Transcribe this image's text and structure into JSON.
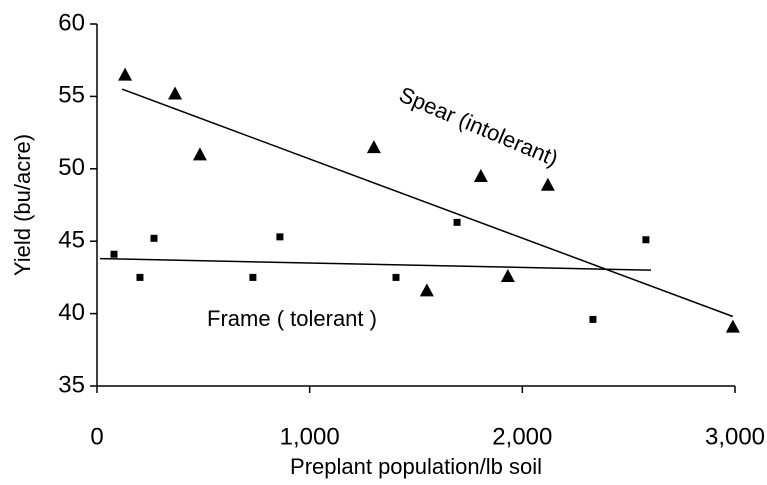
{
  "chart_data": {
    "type": "scatter",
    "x_label": "Preplant population/lb soil",
    "y_label": "Yield (bu/acre)",
    "xlim": [
      0,
      3000
    ],
    "xticks": [
      0,
      {
        "value": 1000,
        "label": "1,000"
      },
      {
        "value": 2000,
        "label": "2,000"
      },
      {
        "value": 3000,
        "label": "3,000"
      }
    ],
    "ylim": [
      35,
      60
    ],
    "yticks": [
      35,
      40,
      45,
      50,
      55,
      60
    ],
    "grid": false,
    "series": [
      {
        "name": "Spear (intolerant)",
        "marker": "triangle",
        "color": "#000000",
        "x": [
          132,
          367,
          484,
          1302,
          1551,
          1805,
          1932,
          2120,
          2990
        ],
        "values": [
          56.5,
          55.2,
          51.0,
          51.5,
          41.6,
          49.5,
          42.6,
          48.9,
          39.1
        ],
        "trend": {
          "x": [
            118,
            2990
          ],
          "values": [
            55.5,
            39.8
          ]
        }
      },
      {
        "name": "Frame ( tolerant )",
        "marker": "square",
        "color": "#000000",
        "x": [
          80,
          202,
          268,
          733,
          860,
          1406,
          1693,
          2332,
          2581
        ],
        "values": [
          44.1,
          42.5,
          45.2,
          42.5,
          45.3,
          42.5,
          46.3,
          39.6,
          45.1
        ],
        "trend": {
          "x": [
            14,
            2605
          ],
          "values": [
            43.8,
            43.0
          ]
        }
      }
    ]
  }
}
